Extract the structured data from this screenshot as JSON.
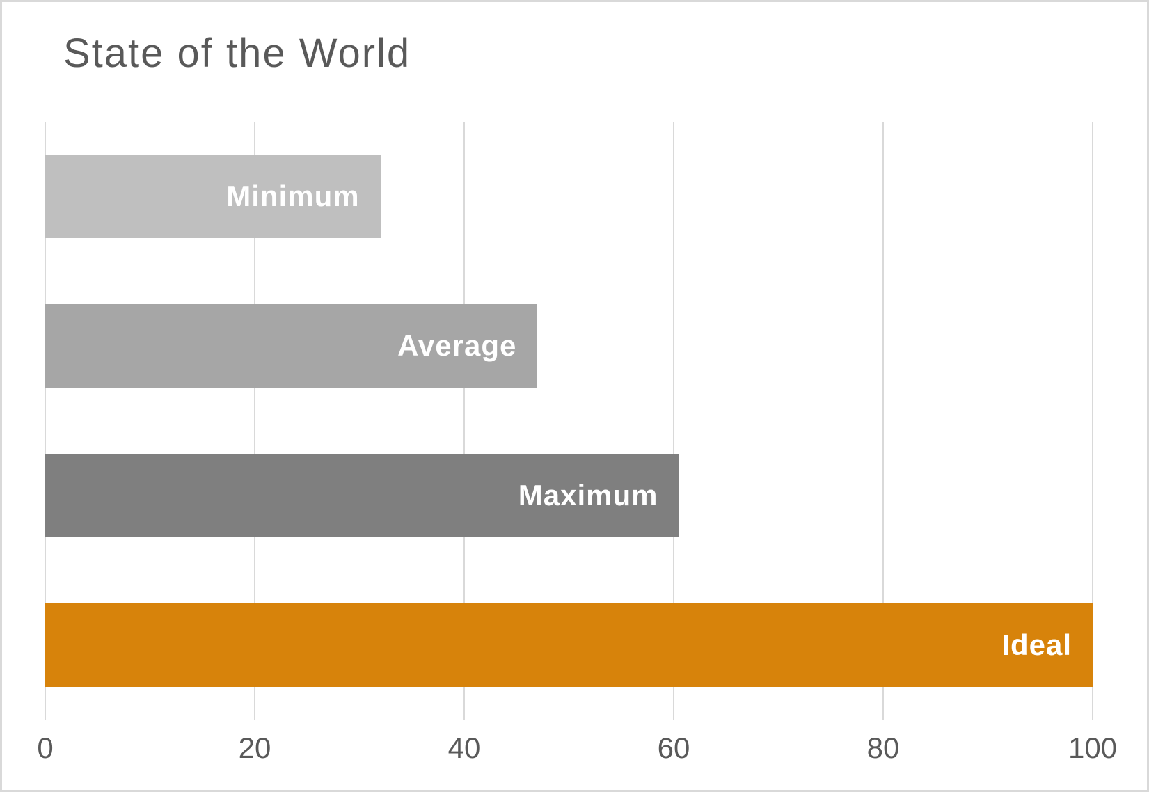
{
  "chart_data": {
    "type": "bar",
    "orientation": "horizontal",
    "title": "State of the World",
    "categories": [
      "Minimum",
      "Average",
      "Maximum",
      "Ideal"
    ],
    "values": [
      32,
      47,
      60.5,
      100
    ],
    "xlim": [
      0,
      100
    ],
    "x_ticks": [
      0,
      20,
      40,
      60,
      80,
      100
    ],
    "grid": "vertical-major",
    "legend": "none",
    "data_label_style": "category-name-inside-end",
    "colors": {
      "bars": [
        "#BFBFBF",
        "#A6A6A6",
        "#7F7F7F",
        "#D7830B"
      ],
      "bar_label_text": "#FFFFFF",
      "title_text": "#595959",
      "tick_text": "#595959",
      "gridline": "#D9D9D9",
      "background": "#FFFFFF",
      "border": "#D9D9D9"
    }
  }
}
